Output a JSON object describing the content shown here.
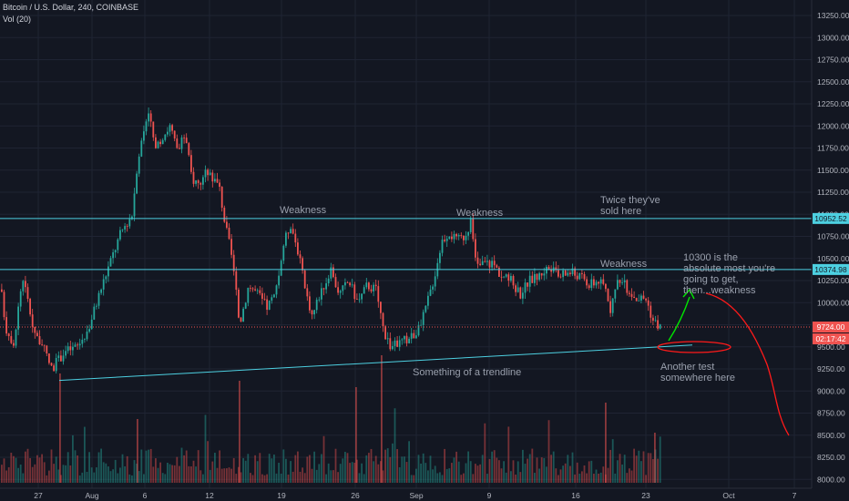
{
  "header": {
    "symbol_line": "Bitcoin / U.S. Dollar, 240, COINBASE",
    "volume_line": "Vol (20)"
  },
  "colors": {
    "background": "#131722",
    "up": "#26a69a",
    "down": "#ef5350",
    "grid": "#1f2433",
    "axis_text": "#b2b5be",
    "level_line": "#4dd0e1",
    "annotation_text": "#9aa0ad",
    "arrow_green": "#00e600",
    "drawing_red": "#ff1a1a"
  },
  "chart_data": {
    "type": "candlestick",
    "y_axis": {
      "ticks": [
        8000,
        8250,
        8500,
        8750,
        9000,
        9250,
        9500,
        9750,
        10000,
        10250,
        10500,
        10750,
        11000,
        11250,
        11500,
        11750,
        12000,
        12250,
        12500,
        12750,
        13000,
        13250
      ],
      "range": [
        8000,
        13300
      ]
    },
    "x_axis": {
      "ticks": [
        "27",
        "Aug",
        "6",
        "12",
        "19",
        "26",
        "Sep",
        "9",
        "16",
        "23",
        "Oct",
        "7"
      ]
    },
    "price_path": [
      [
        0,
        10150
      ],
      [
        6,
        9700
      ],
      [
        14,
        9550
      ],
      [
        24,
        10300
      ],
      [
        36,
        9700
      ],
      [
        48,
        9450
      ],
      [
        56,
        9250
      ],
      [
        70,
        9450
      ],
      [
        84,
        9500
      ],
      [
        96,
        9700
      ],
      [
        108,
        10100
      ],
      [
        118,
        10400
      ],
      [
        132,
        10800
      ],
      [
        144,
        11000
      ],
      [
        150,
        11600
      ],
      [
        158,
        12000
      ],
      [
        162,
        12200
      ],
      [
        170,
        11700
      ],
      [
        178,
        11900
      ],
      [
        186,
        12000
      ],
      [
        194,
        11700
      ],
      [
        202,
        11900
      ],
      [
        210,
        11400
      ],
      [
        218,
        11350
      ],
      [
        228,
        11500
      ],
      [
        240,
        11300
      ],
      [
        246,
        10900
      ],
      [
        254,
        10500
      ],
      [
        262,
        9750
      ],
      [
        272,
        10200
      ],
      [
        282,
        10100
      ],
      [
        292,
        9950
      ],
      [
        302,
        10100
      ],
      [
        310,
        10650
      ],
      [
        318,
        10900
      ],
      [
        326,
        10600
      ],
      [
        334,
        10150
      ],
      [
        342,
        9850
      ],
      [
        350,
        10100
      ],
      [
        362,
        10350
      ],
      [
        372,
        10100
      ],
      [
        382,
        10250
      ],
      [
        392,
        10000
      ],
      [
        402,
        10200
      ],
      [
        412,
        10150
      ],
      [
        420,
        9700
      ],
      [
        428,
        9500
      ],
      [
        438,
        9550
      ],
      [
        448,
        9600
      ],
      [
        460,
        9700
      ],
      [
        468,
        10000
      ],
      [
        476,
        10300
      ],
      [
        484,
        10700
      ],
      [
        492,
        10800
      ],
      [
        500,
        10700
      ],
      [
        508,
        10750
      ],
      [
        516,
        10900
      ],
      [
        522,
        10400
      ],
      [
        530,
        10450
      ],
      [
        540,
        10450
      ],
      [
        550,
        10300
      ],
      [
        560,
        10250
      ],
      [
        570,
        10100
      ],
      [
        580,
        10250
      ],
      [
        590,
        10300
      ],
      [
        600,
        10400
      ],
      [
        612,
        10300
      ],
      [
        624,
        10350
      ],
      [
        636,
        10300
      ],
      [
        646,
        10200
      ],
      [
        656,
        10250
      ],
      [
        664,
        10150
      ],
      [
        670,
        9900
      ],
      [
        678,
        10300
      ],
      [
        688,
        10150
      ],
      [
        698,
        10050
      ],
      [
        708,
        10050
      ],
      [
        716,
        9800
      ],
      [
        724,
        9724
      ]
    ],
    "price_labels": [
      {
        "value": 10952.52,
        "text": "10952.52"
      },
      {
        "value": 10374.98,
        "text": "10374.98"
      },
      {
        "value": 9724.0,
        "text": "9724.00"
      }
    ],
    "countdown": "02:17:42",
    "horizontal_levels": [
      10952.52,
      10374.98
    ],
    "current_price": 9724.0,
    "trendline": {
      "from": [
        65,
        9120
      ],
      "to": [
        760,
        9520
      ]
    },
    "volume_label": "Vol (20)"
  },
  "annotations": {
    "weakness_1": "Weakness",
    "weakness_2": "Weakness",
    "weakness_3": "Weakness",
    "twice_line1": "Twice they've",
    "twice_line2": "sold here",
    "target_line1": "10300 is the",
    "target_line2": "absolute most you're",
    "target_line3": "going to get,",
    "target_line4": "then...weakness",
    "trend_text": "Something of a trendline",
    "test_line1": "Another test",
    "test_line2": "somewhere here"
  }
}
